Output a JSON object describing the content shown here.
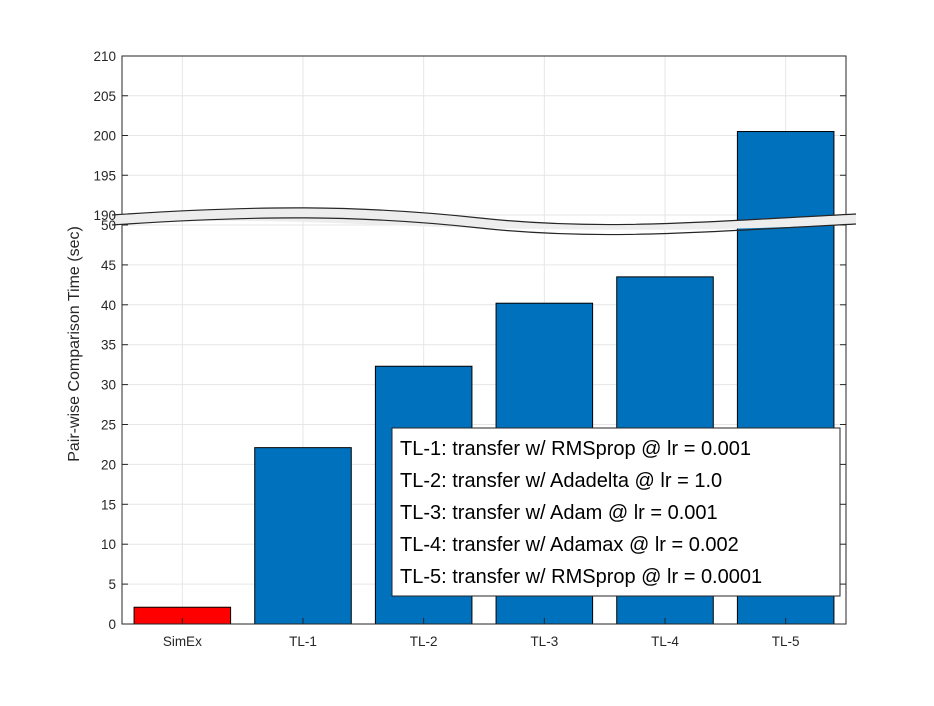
{
  "chart_data": {
    "type": "bar",
    "title": "",
    "xlabel": "",
    "ylabel": "Pair-wise Comparison Time (sec)",
    "categories": [
      "SimEx",
      "TL-1",
      "TL-2",
      "TL-3",
      "TL-4",
      "TL-5"
    ],
    "values": [
      2.1,
      22.1,
      32.3,
      40.2,
      43.5,
      200.5
    ],
    "bar_colors": [
      "#ff0000",
      "#0072bd",
      "#0072bd",
      "#0072bd",
      "#0072bd",
      "#0072bd"
    ],
    "y_axis_broken": true,
    "ylim_lower": [
      0,
      50
    ],
    "ylim_upper": [
      190,
      210
    ],
    "yticks_lower": [
      "0",
      "5",
      "10",
      "15",
      "20",
      "25",
      "30",
      "35",
      "40",
      "45",
      "50"
    ],
    "yticks_upper": [
      "190",
      "195",
      "200",
      "205",
      "210"
    ],
    "grid": true,
    "legend_placement": "bottom-right",
    "legend_entries": [
      "TL-1: transfer w/ RMSprop @ lr = 0.001",
      "TL-2: transfer w/ Adadelta @ lr = 1.0",
      "TL-3: transfer w/ Adam @ lr = 0.001",
      "TL-4: transfer w/ Adamax @ lr = 0.002",
      "TL-5: transfer w/ RMSprop @ lr = 0.0001"
    ]
  }
}
